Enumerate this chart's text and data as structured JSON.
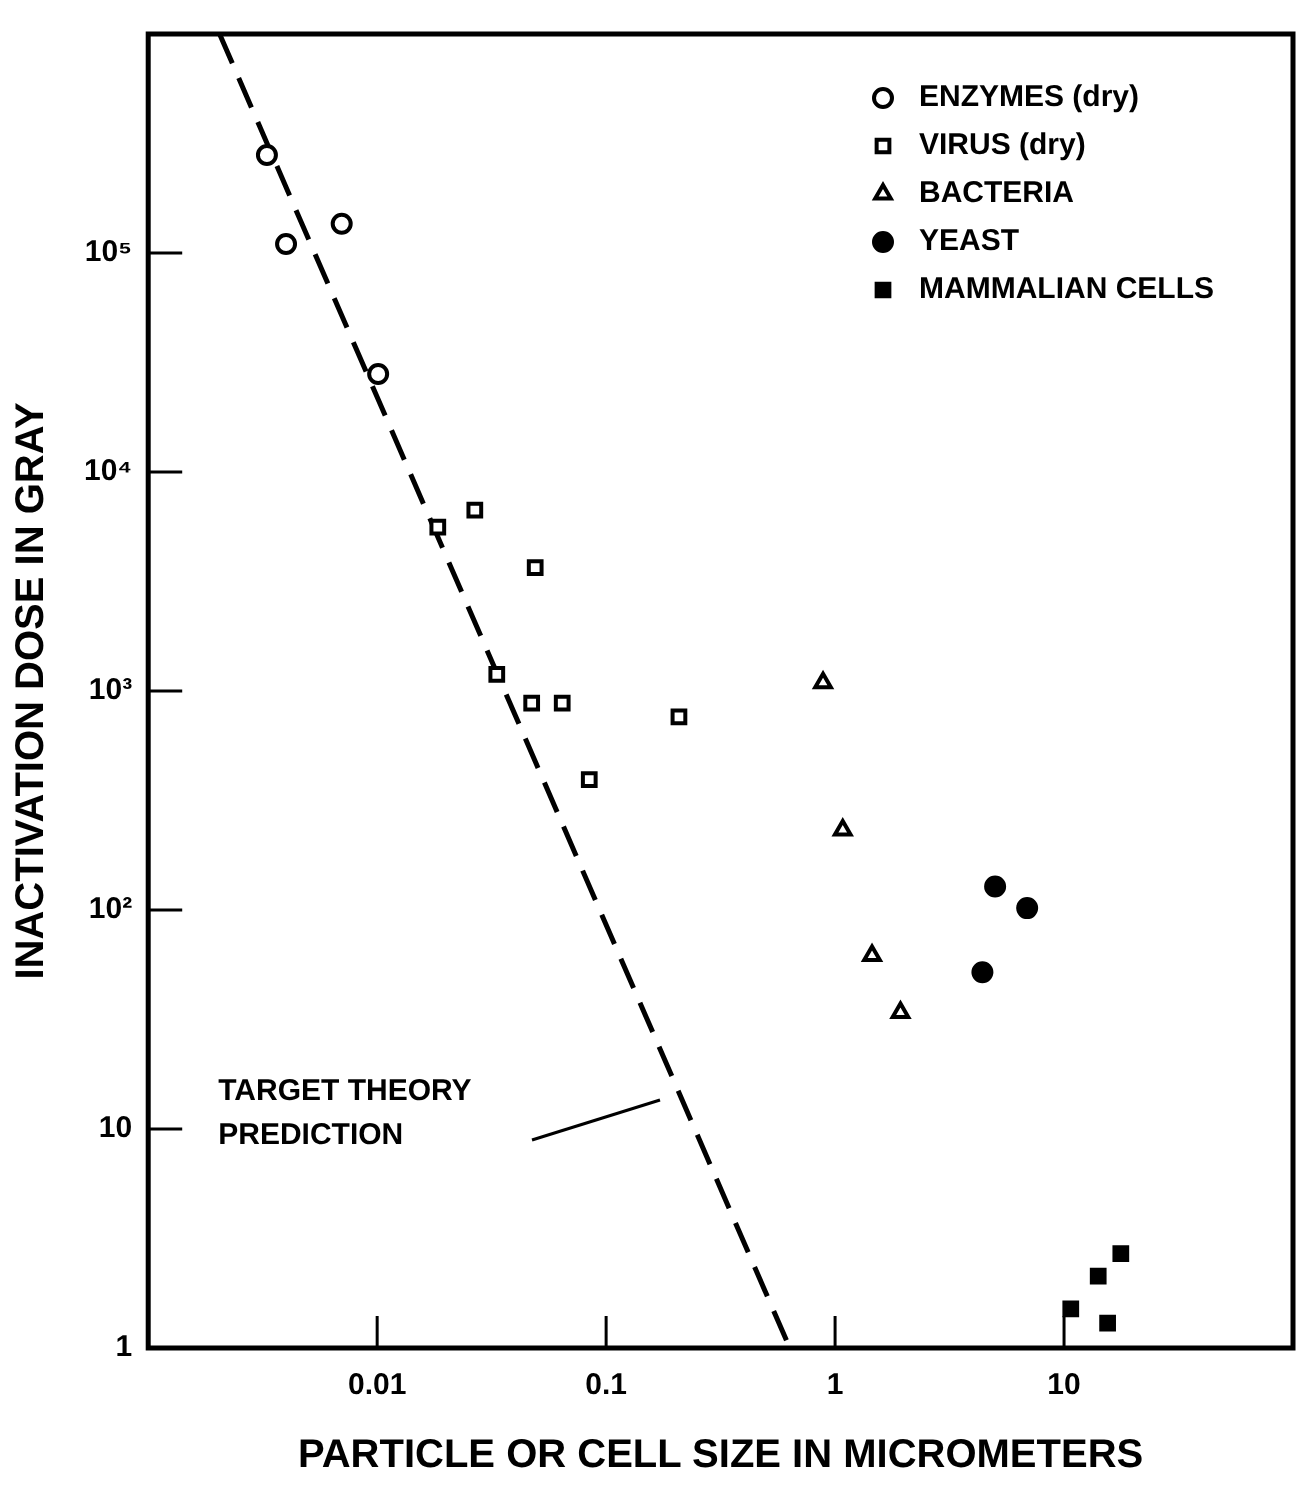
{
  "chart_data": {
    "type": "scatter",
    "xlabel": "PARTICLE OR CELL SIZE IN MICROMETERS",
    "ylabel": "INACTIVATION DOSE IN GRAY",
    "log": "xy",
    "grid": false,
    "legend": "top right",
    "xlim": [
      0.001,
      100
    ],
    "xticks": [
      0.01,
      0.1,
      1,
      10
    ],
    "ylim": [
      1,
      1000000
    ],
    "yticks": [
      1,
      10,
      {
        "value": 100,
        "label": "10²"
      },
      {
        "value": 1000,
        "label": "10³"
      },
      {
        "value": 10000,
        "label": "10⁴"
      },
      {
        "value": 100000,
        "label": "10⁵"
      }
    ],
    "series": [
      {
        "name": "ENZYMES (dry)",
        "color": "#ffffff",
        "marker": "circle",
        "x": [
          0.0033,
          0.004,
          0.007,
          0.0101
        ],
        "values": [
          280000,
          110000,
          136000,
          28000
        ]
      },
      {
        "name": "VIRUS (dry)",
        "color": "#ffffff",
        "marker": "square",
        "x": [
          0.0184,
          0.0267,
          0.049,
          0.0333,
          0.0473,
          0.0643,
          0.0844,
          0.208
        ],
        "values": [
          5600,
          6700,
          3660,
          1190,
          880,
          880,
          394,
          762
        ]
      },
      {
        "name": "BACTERIA",
        "color": "#ffffff",
        "marker": "triangle",
        "x": [
          0.886,
          1.08,
          1.45,
          1.93
        ],
        "values": [
          1090,
          232,
          62,
          34
        ]
      },
      {
        "name": "YEAST",
        "color": "#000000",
        "marker": "circle",
        "x": [
          5.0,
          6.9,
          4.4
        ],
        "values": [
          128,
          102,
          52
        ]
      },
      {
        "name": "MAMMALIAN CELLS",
        "color": "#000000",
        "marker": "square",
        "x": [
          17.7,
          14.1,
          10.7,
          15.5
        ],
        "values": [
          2.7,
          2.13,
          1.51,
          1.3
        ]
      },
      {
        "type": "line",
        "color": "#000000",
        "line_style": "dashed",
        "marker": "none",
        "x": [
          0.00205,
          0.634
        ],
        "values": [
          1000000,
          1
        ]
      }
    ],
    "annotations": [
      "TARGET THEORY\nPREDICTION"
    ]
  }
}
